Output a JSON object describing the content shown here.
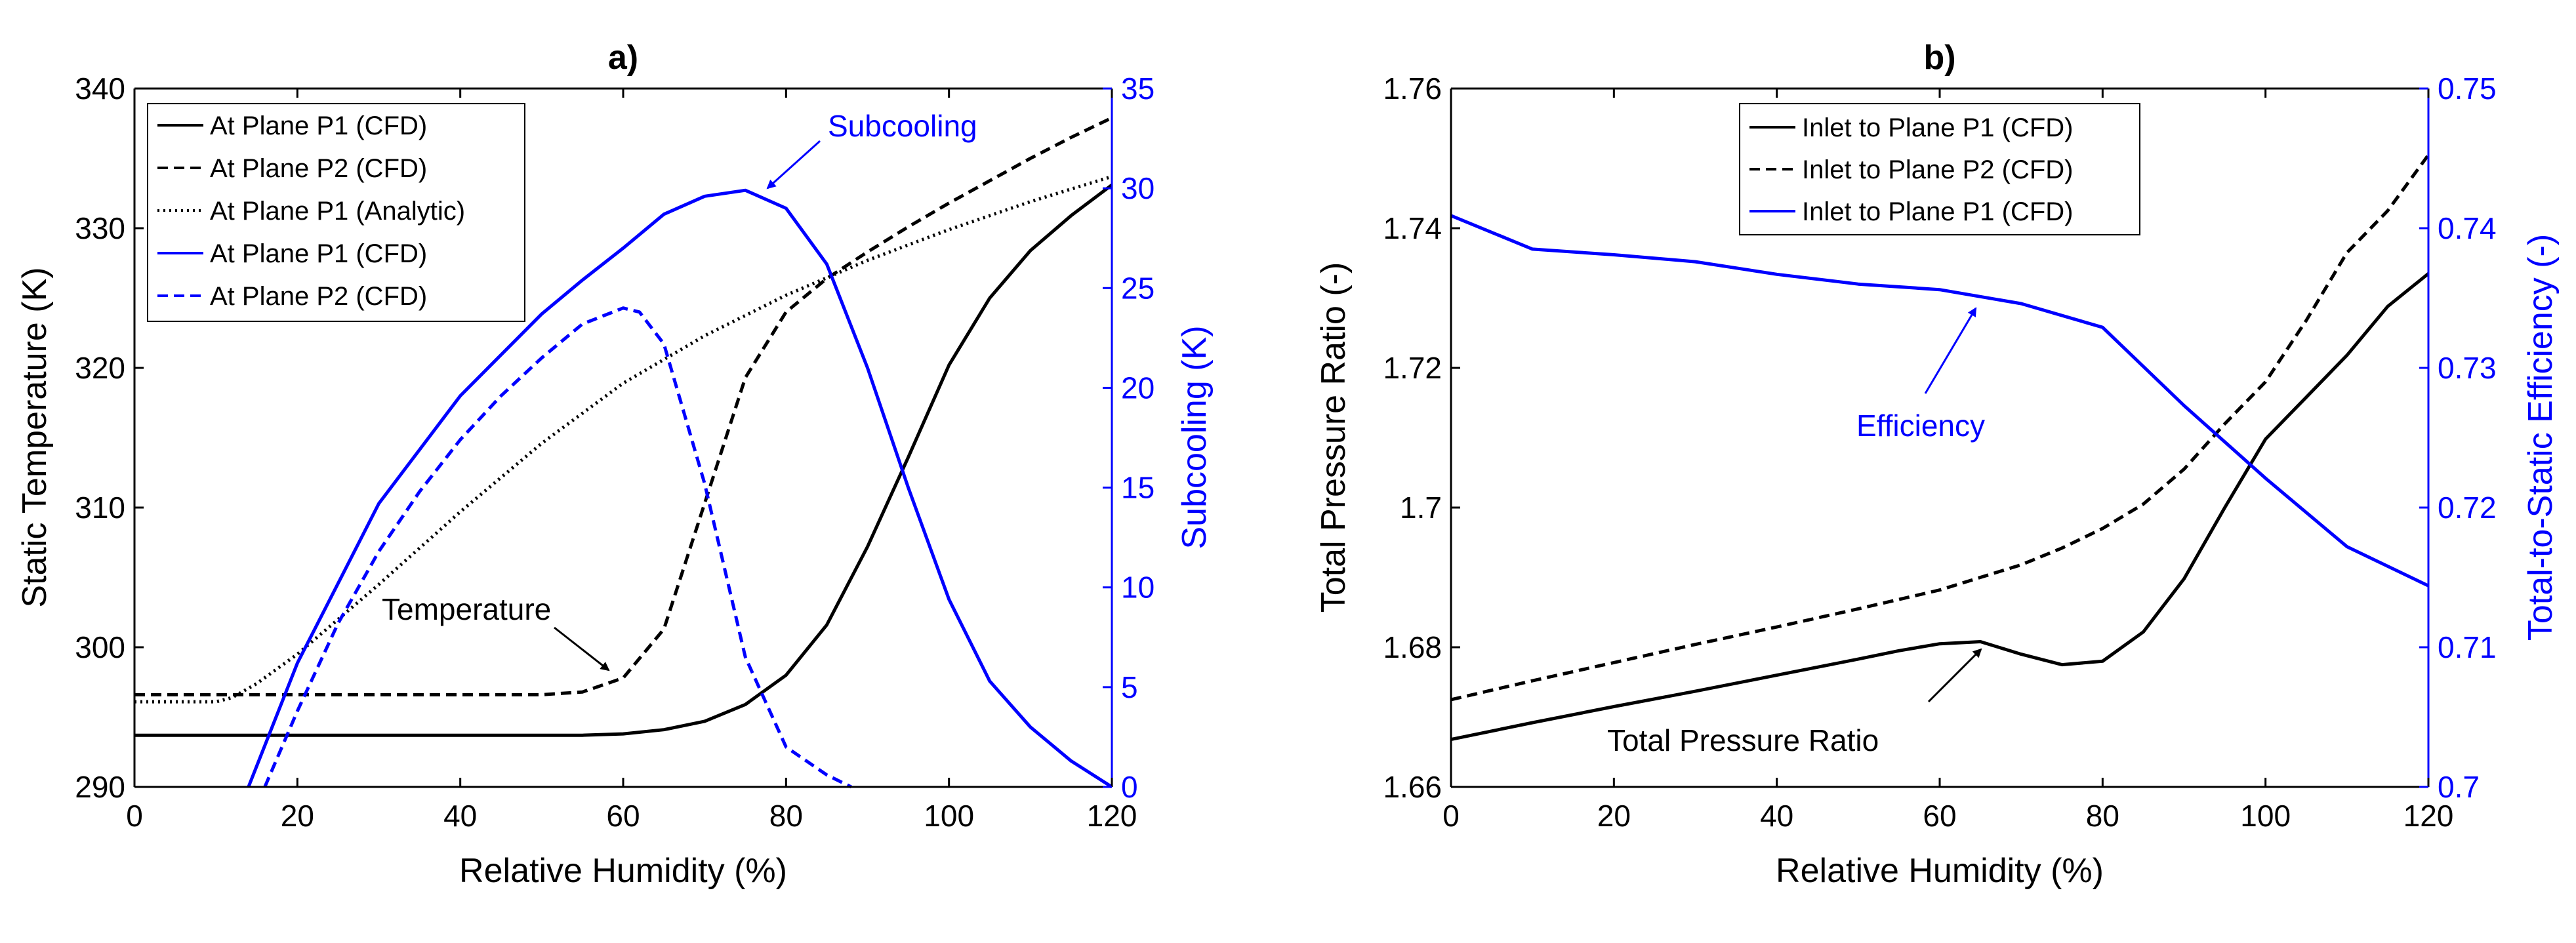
{
  "chart_data": [
    {
      "type": "line",
      "title": "a)",
      "xlabel": "Relative Humidity (%)",
      "ylabel_left": "Static Temperature (K)",
      "ylabel_right": "Subcooling (K)",
      "xlim": [
        0,
        120
      ],
      "ylim_left": [
        290,
        340
      ],
      "ylim_right": [
        0,
        35
      ],
      "xticks": [
        0,
        20,
        40,
        60,
        80,
        100,
        120
      ],
      "yticks_left": [
        290,
        300,
        310,
        320,
        330,
        340
      ],
      "yticks_right": [
        0,
        5,
        10,
        15,
        20,
        25,
        30,
        35
      ],
      "right_axis_color": "#0000ff",
      "grid": false,
      "legend_position": "top-left",
      "series": [
        {
          "name": "At Plane P1 (CFD)",
          "axis": "left",
          "color": "#000000",
          "dash": "solid",
          "x": [
            0,
            10,
            20,
            30,
            40,
            50,
            55,
            60,
            65,
            70,
            75,
            80,
            85,
            90,
            95,
            100,
            105,
            110,
            115,
            120
          ],
          "y": [
            293.7,
            293.7,
            293.7,
            293.7,
            293.7,
            293.7,
            293.7,
            293.8,
            294.1,
            294.7,
            295.9,
            298.0,
            301.6,
            307.2,
            313.6,
            320.2,
            325.0,
            328.4,
            330.9,
            333.1
          ]
        },
        {
          "name": "At Plane P2 (CFD)",
          "axis": "left",
          "color": "#000000",
          "dash": "dashed",
          "x": [
            0,
            10,
            20,
            30,
            40,
            50,
            55,
            60,
            65,
            70,
            75,
            80,
            85,
            90,
            95,
            100,
            105,
            110,
            115,
            120
          ],
          "y": [
            296.6,
            296.6,
            296.6,
            296.6,
            296.6,
            296.6,
            296.8,
            297.8,
            301.3,
            310.3,
            319.3,
            324.0,
            326.4,
            328.3,
            330.1,
            331.8,
            333.4,
            335.0,
            336.5,
            337.9
          ]
        },
        {
          "name": "At Plane P1 (Analytic)",
          "axis": "left",
          "color": "#000000",
          "dash": "dotted",
          "x": [
            0,
            10,
            12,
            15,
            20,
            30,
            40,
            50,
            60,
            70,
            80,
            90,
            100,
            110,
            120
          ],
          "y": [
            296.1,
            296.1,
            296.4,
            297.4,
            299.5,
            304.5,
            309.7,
            314.6,
            318.9,
            322.3,
            325.2,
            327.7,
            329.9,
            331.9,
            333.7
          ]
        },
        {
          "name": "At Plane P1 (CFD)",
          "axis": "right",
          "color": "#0000ff",
          "dash": "solid",
          "x": [
            14,
            20,
            30,
            40,
            50,
            55,
            60,
            65,
            70,
            75,
            80,
            85,
            90,
            95,
            100,
            105,
            110,
            115,
            120
          ],
          "y": [
            0,
            6.2,
            14.2,
            19.6,
            23.7,
            25.4,
            27.0,
            28.7,
            29.6,
            29.9,
            29.0,
            26.2,
            21.0,
            15.0,
            9.4,
            5.3,
            3.0,
            1.3,
            0
          ]
        },
        {
          "name": "At Plane P2 (CFD)",
          "axis": "right",
          "color": "#0000ff",
          "dash": "dashed",
          "x": [
            16,
            20,
            25,
            30,
            35,
            40,
            45,
            50,
            55,
            60,
            62,
            65,
            70,
            75,
            80,
            85,
            88
          ],
          "y": [
            0,
            3.8,
            8.2,
            11.8,
            14.8,
            17.4,
            19.6,
            21.5,
            23.2,
            24.0,
            23.8,
            22.2,
            15.2,
            6.5,
            2.0,
            0.6,
            0
          ]
        }
      ],
      "annotations": [
        {
          "text": "Subcooling",
          "points_to": {
            "x": 75,
            "y": 29.8,
            "axis": "right"
          }
        },
        {
          "text": "Temperature",
          "points_to": {
            "x": 60,
            "y": 297.8,
            "axis": "left"
          }
        }
      ]
    },
    {
      "type": "line",
      "title": "b)",
      "xlabel": "Relative Humidity (%)",
      "ylabel_left": "Total Pressure Ratio (-)",
      "ylabel_right": "Total-to-Static Efficiency (-)",
      "xlim": [
        0,
        120
      ],
      "ylim_left": [
        1.66,
        1.76
      ],
      "ylim_right": [
        0.7,
        0.75
      ],
      "xticks": [
        0,
        20,
        40,
        60,
        80,
        100,
        120
      ],
      "yticks_left": [
        1.66,
        1.68,
        1.7,
        1.72,
        1.74,
        1.76
      ],
      "yticks_right": [
        0.7,
        0.71,
        0.72,
        0.73,
        0.74,
        0.75
      ],
      "ytick_labels_left": [
        "1.66",
        "1.68",
        "1.7",
        "1.72",
        "1.74",
        "1.76"
      ],
      "ytick_labels_right": [
        "0.7",
        "0.71",
        "0.72",
        "0.73",
        "0.74",
        "0.75"
      ],
      "right_axis_color": "#0000ff",
      "grid": false,
      "legend_position": "top-center",
      "series": [
        {
          "name": "Inlet to Plane P1 (CFD)",
          "axis": "left",
          "color": "#000000",
          "dash": "solid",
          "x": [
            0,
            10,
            20,
            30,
            40,
            50,
            55,
            60,
            65,
            70,
            75,
            80,
            85,
            90,
            95,
            100,
            105,
            110,
            115,
            120
          ],
          "y": [
            1.6668,
            1.6692,
            1.6715,
            1.6737,
            1.676,
            1.6783,
            1.6795,
            1.6805,
            1.6808,
            1.679,
            1.6775,
            1.678,
            1.6822,
            1.6898,
            1.7,
            1.7098,
            1.7158,
            1.7218,
            1.7288,
            1.7335
          ]
        },
        {
          "name": "Inlet to Plane P2 (CFD)",
          "axis": "left",
          "color": "#000000",
          "dash": "dashed",
          "x": [
            0,
            10,
            20,
            30,
            40,
            50,
            60,
            70,
            75,
            80,
            85,
            90,
            95,
            100,
            105,
            110,
            115,
            120
          ],
          "y": [
            1.6725,
            1.6752,
            1.6778,
            1.6804,
            1.6829,
            1.6855,
            1.6882,
            1.6918,
            1.6942,
            1.697,
            1.7005,
            1.7055,
            1.712,
            1.718,
            1.7268,
            1.7365,
            1.7425,
            1.7505
          ]
        },
        {
          "name": "Inlet to Plane P1 (CFD)",
          "axis": "right",
          "color": "#0000ff",
          "dash": "solid",
          "x": [
            0,
            10,
            20,
            30,
            40,
            50,
            60,
            70,
            80,
            90,
            100,
            110,
            120
          ],
          "y": [
            0.7409,
            0.7385,
            0.7381,
            0.7376,
            0.7367,
            0.736,
            0.7356,
            0.7346,
            0.7329,
            0.7273,
            0.7221,
            0.7172,
            0.7144
          ]
        }
      ],
      "annotations": [
        {
          "text": "Efficiency",
          "points_to": {
            "x": 65,
            "y": 0.7352,
            "axis": "right"
          }
        },
        {
          "text": "Total Pressure Ratio",
          "points_to": {
            "x": 65,
            "y": 1.6808,
            "axis": "left"
          }
        }
      ]
    }
  ]
}
